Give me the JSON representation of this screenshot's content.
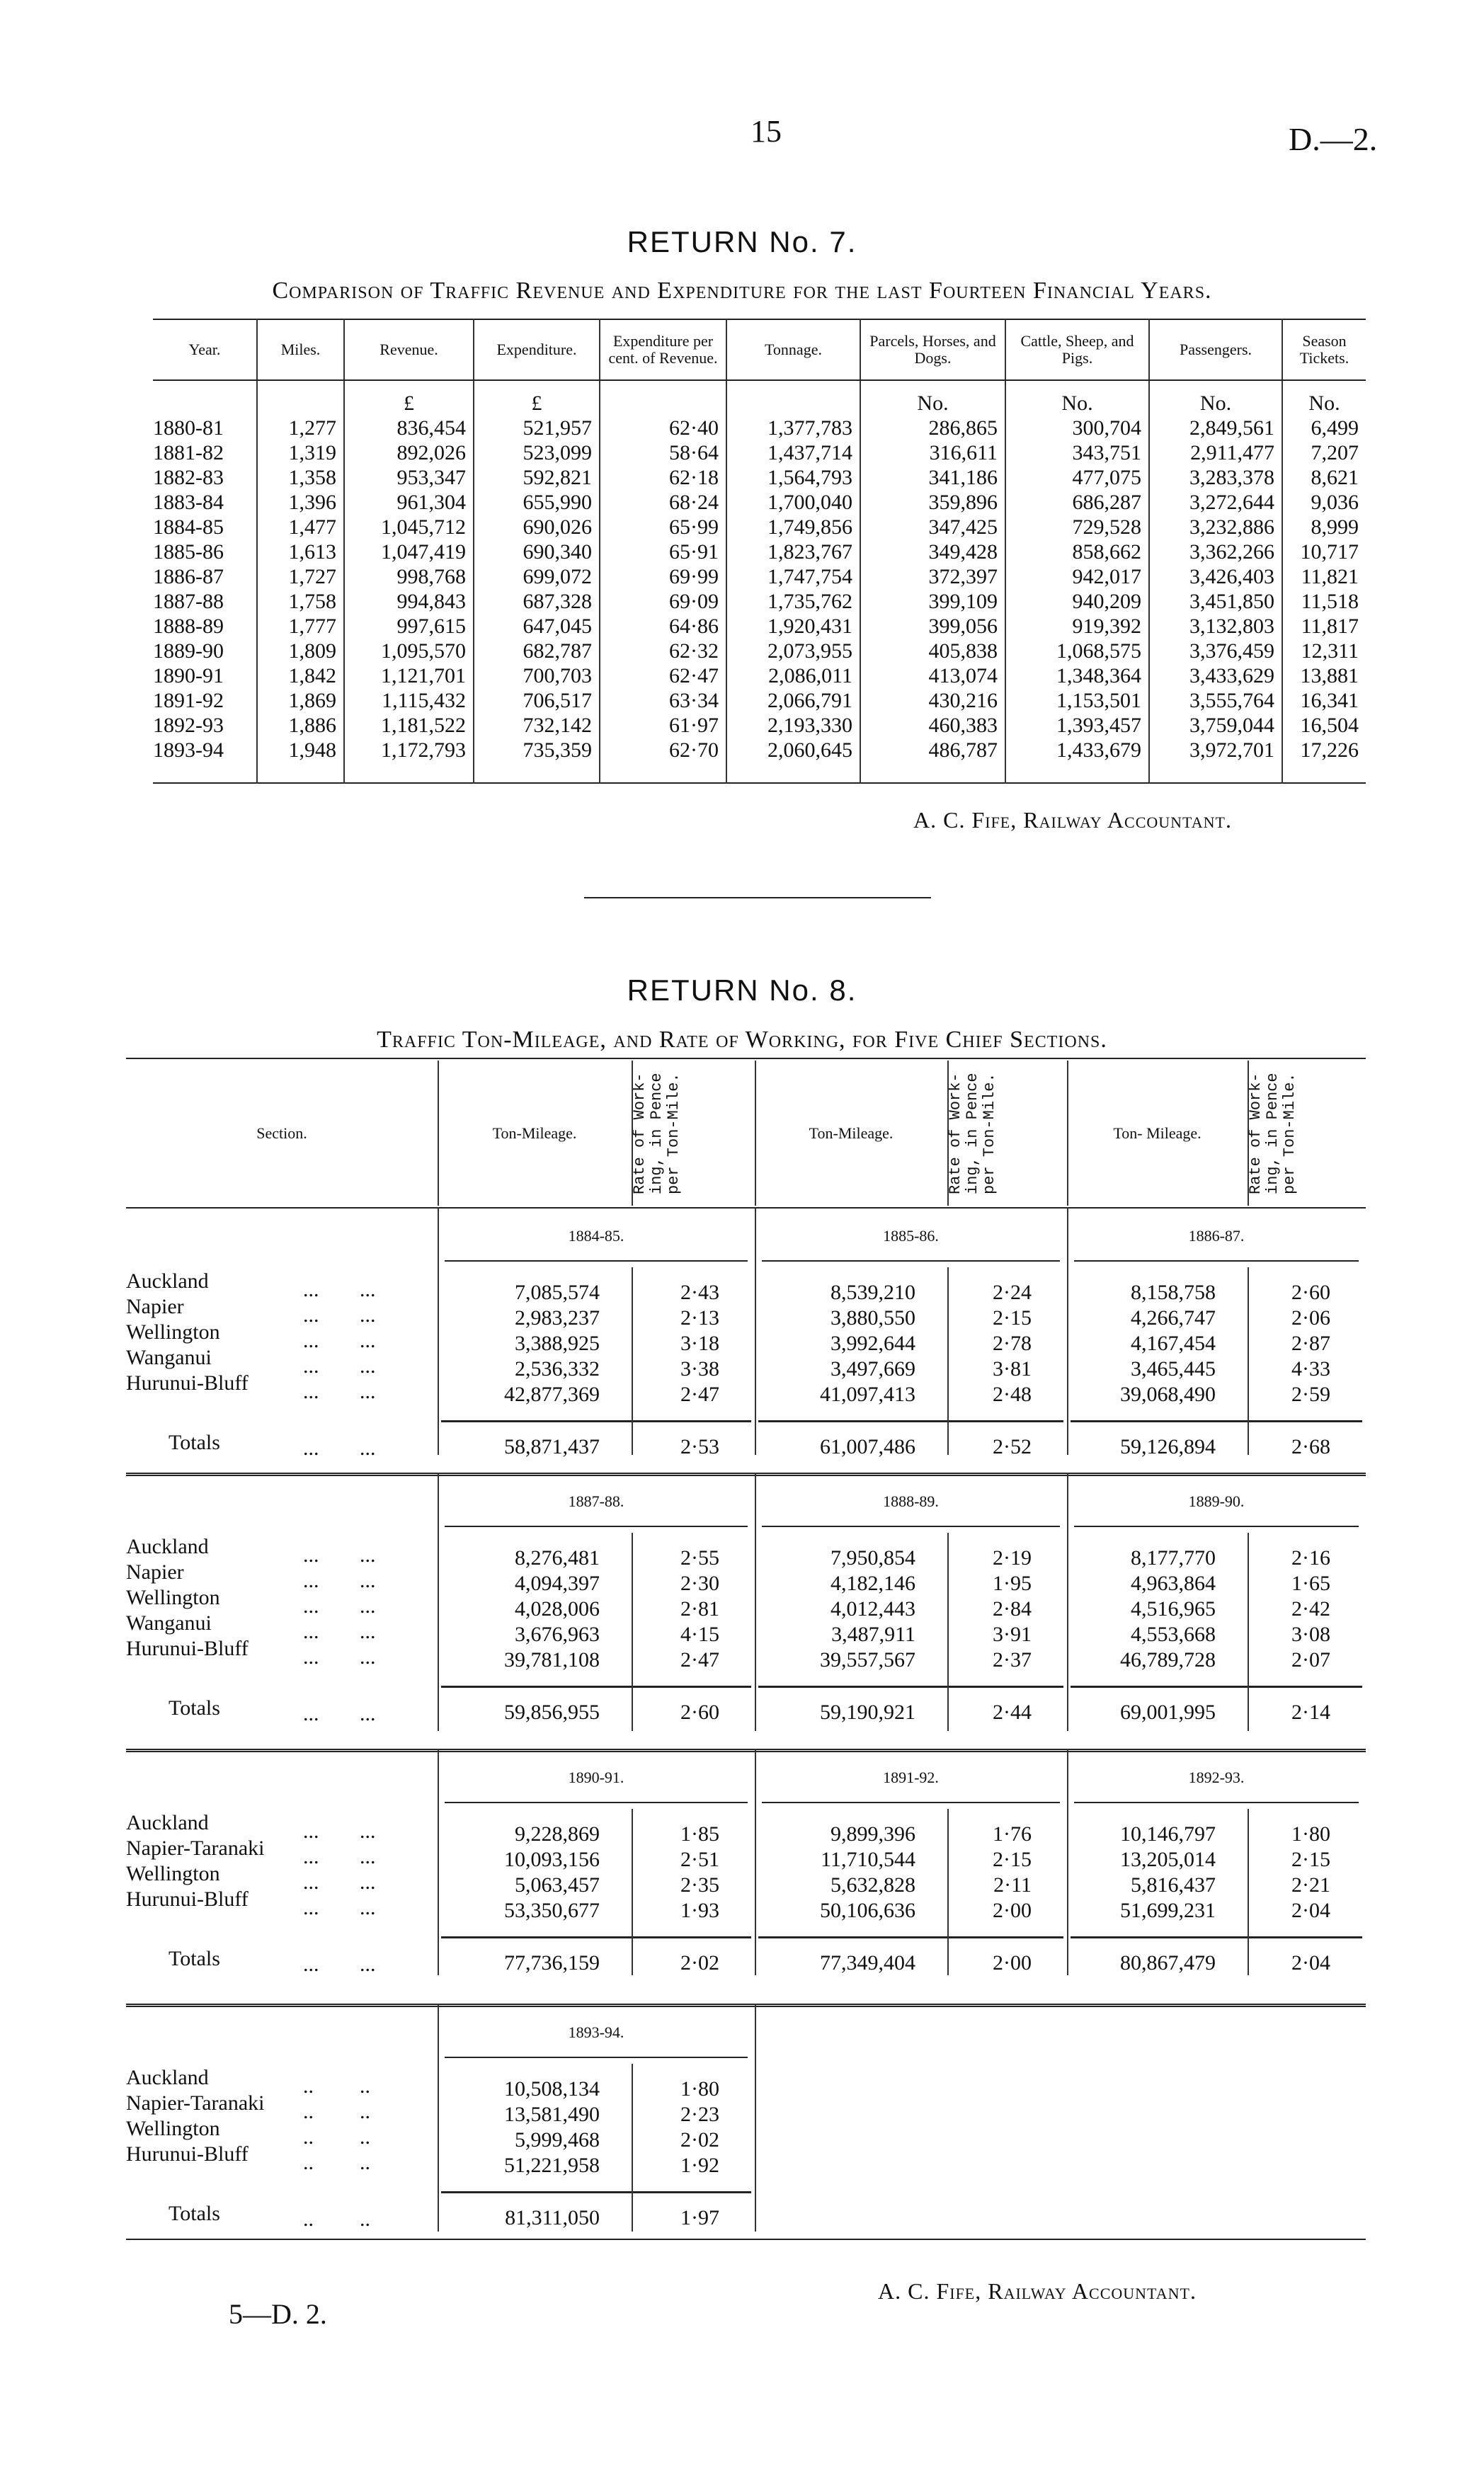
{
  "page": {
    "number": "15",
    "doc_ref": "D.—2.",
    "footer_ref": "5—D. 2."
  },
  "return7": {
    "title": "RETURN No. 7.",
    "subtitle": "Comparison of Traffic Revenue and Expenditure for the last Fourteen Financial Years.",
    "headers": [
      "Year.",
      "Miles.",
      "Revenue.",
      "Expenditure.",
      "Expenditure per cent. of Revenue.",
      "Tonnage.",
      "Parcels, Horses, and Dogs.",
      "Cattle, Sheep, and Pigs.",
      "Passengers.",
      "Season Tickets."
    ],
    "units": [
      "",
      "",
      "£",
      "£",
      "",
      "",
      "No.",
      "No.",
      "No.",
      "No."
    ],
    "rows": [
      [
        "1880-81",
        "1,277",
        "836,454",
        "521,957",
        "62·40",
        "1,377,783",
        "286,865",
        "300,704",
        "2,849,561",
        "6,499"
      ],
      [
        "1881-82",
        "1,319",
        "892,026",
        "523,099",
        "58·64",
        "1,437,714",
        "316,611",
        "343,751",
        "2,911,477",
        "7,207"
      ],
      [
        "1882-83",
        "1,358",
        "953,347",
        "592,821",
        "62·18",
        "1,564,793",
        "341,186",
        "477,075",
        "3,283,378",
        "8,621"
      ],
      [
        "1883-84",
        "1,396",
        "961,304",
        "655,990",
        "68·24",
        "1,700,040",
        "359,896",
        "686,287",
        "3,272,644",
        "9,036"
      ],
      [
        "1884-85",
        "1,477",
        "1,045,712",
        "690,026",
        "65·99",
        "1,749,856",
        "347,425",
        "729,528",
        "3,232,886",
        "8,999"
      ],
      [
        "1885-86",
        "1,613",
        "1,047,419",
        "690,340",
        "65·91",
        "1,823,767",
        "349,428",
        "858,662",
        "3,362,266",
        "10,717"
      ],
      [
        "1886-87",
        "1,727",
        "998,768",
        "699,072",
        "69·99",
        "1,747,754",
        "372,397",
        "942,017",
        "3,426,403",
        "11,821"
      ],
      [
        "1887-88",
        "1,758",
        "994,843",
        "687,328",
        "69·09",
        "1,735,762",
        "399,109",
        "940,209",
        "3,451,850",
        "11,518"
      ],
      [
        "1888-89",
        "1,777",
        "997,615",
        "647,045",
        "64·86",
        "1,920,431",
        "399,056",
        "919,392",
        "3,132,803",
        "11,817"
      ],
      [
        "1889-90",
        "1,809",
        "1,095,570",
        "682,787",
        "62·32",
        "2,073,955",
        "405,838",
        "1,068,575",
        "3,376,459",
        "12,311"
      ],
      [
        "1890-91",
        "1,842",
        "1,121,701",
        "700,703",
        "62·47",
        "2,086,011",
        "413,074",
        "1,348,364",
        "3,433,629",
        "13,881"
      ],
      [
        "1891-92",
        "1,869",
        "1,115,432",
        "706,517",
        "63·34",
        "2,066,791",
        "430,216",
        "1,153,501",
        "3,555,764",
        "16,341"
      ],
      [
        "1892-93",
        "1,886",
        "1,181,522",
        "732,142",
        "61·97",
        "2,193,330",
        "460,383",
        "1,393,457",
        "3,759,044",
        "16,504"
      ],
      [
        "1893-94",
        "1,948",
        "1,172,793",
        "735,359",
        "62·70",
        "2,060,645",
        "486,787",
        "1,433,679",
        "3,972,701",
        "17,226"
      ]
    ],
    "signature": "A. C. Fife, Railway Accountant."
  },
  "return8": {
    "title": "RETURN No. 8.",
    "subtitle": "Traffic Ton-Mileage, and Rate of Working, for Five Chief Sections.",
    "headers": {
      "section": "Section.",
      "ton_mileage": [
        "Ton-Mileage.",
        "Ton-Mileage.",
        "Ton- Mileage."
      ],
      "rate": "Rate of Work- ing, in Pence per Ton-Mile."
    },
    "totals_label": "Totals",
    "blocks": [
      {
        "sections": [
          "Auckland",
          "Napier",
          "Wellington",
          "Wanganui",
          "Hurunui-Bluff"
        ],
        "dots": [
          "...",
          "..."
        ],
        "years": [
          {
            "year": "1884-85.",
            "ton_mileage": [
              "7,085,574",
              "2,983,237",
              "3,388,925",
              "2,536,332",
              "42,877,369"
            ],
            "rate": [
              "2·43",
              "2·13",
              "3·18",
              "3·38",
              "2·47"
            ],
            "total_ton_mileage": "58,871,437",
            "total_rate": "2·53"
          },
          {
            "year": "1885-86.",
            "ton_mileage": [
              "8,539,210",
              "3,880,550",
              "3,992,644",
              "3,497,669",
              "41,097,413"
            ],
            "rate": [
              "2·24",
              "2·15",
              "2·78",
              "3·81",
              "2·48"
            ],
            "total_ton_mileage": "61,007,486",
            "total_rate": "2·52"
          },
          {
            "year": "1886-87.",
            "ton_mileage": [
              "8,158,758",
              "4,266,747",
              "4,167,454",
              "3,465,445",
              "39,068,490"
            ],
            "rate": [
              "2·60",
              "2·06",
              "2·87",
              "4·33",
              "2·59"
            ],
            "total_ton_mileage": "59,126,894",
            "total_rate": "2·68"
          }
        ]
      },
      {
        "sections": [
          "Auckland",
          "Napier",
          "Wellington",
          "Wanganui",
          "Hurunui-Bluff"
        ],
        "dots": [
          "...",
          "..."
        ],
        "years": [
          {
            "year": "1887-88.",
            "ton_mileage": [
              "8,276,481",
              "4,094,397",
              "4,028,006",
              "3,676,963",
              "39,781,108"
            ],
            "rate": [
              "2·55",
              "2·30",
              "2·81",
              "4·15",
              "2·47"
            ],
            "total_ton_mileage": "59,856,955",
            "total_rate": "2·60"
          },
          {
            "year": "1888-89.",
            "ton_mileage": [
              "7,950,854",
              "4,182,146",
              "4,012,443",
              "3,487,911",
              "39,557,567"
            ],
            "rate": [
              "2·19",
              "1·95",
              "2·84",
              "3·91",
              "2·37"
            ],
            "total_ton_mileage": "59,190,921",
            "total_rate": "2·44"
          },
          {
            "year": "1889-90.",
            "ton_mileage": [
              "8,177,770",
              "4,963,864",
              "4,516,965",
              "4,553,668",
              "46,789,728"
            ],
            "rate": [
              "2·16",
              "1·65",
              "2·42",
              "3·08",
              "2·07"
            ],
            "total_ton_mileage": "69,001,995",
            "total_rate": "2·14"
          }
        ]
      },
      {
        "sections": [
          "Auckland",
          "Napier-Taranaki",
          "Wellington",
          "Hurunui-Bluff"
        ],
        "dots": [
          "...",
          "..."
        ],
        "years": [
          {
            "year": "1890-91.",
            "ton_mileage": [
              "9,228,869",
              "10,093,156",
              "5,063,457",
              "53,350,677"
            ],
            "rate": [
              "1·85",
              "2·51",
              "2·35",
              "1·93"
            ],
            "total_ton_mileage": "77,736,159",
            "total_rate": "2·02"
          },
          {
            "year": "1891-92.",
            "ton_mileage": [
              "9,899,396",
              "11,710,544",
              "5,632,828",
              "50,106,636"
            ],
            "rate": [
              "1·76",
              "2·15",
              "2·11",
              "2·00"
            ],
            "total_ton_mileage": "77,349,404",
            "total_rate": "2·00"
          },
          {
            "year": "1892-93.",
            "ton_mileage": [
              "10,146,797",
              "13,205,014",
              "5,816,437",
              "51,699,231"
            ],
            "rate": [
              "1·80",
              "2·15",
              "2·21",
              "2·04"
            ],
            "total_ton_mileage": "80,867,479",
            "total_rate": "2·04"
          }
        ]
      },
      {
        "sections": [
          "Auckland",
          "Napier-Taranaki",
          "Wellington",
          "Hurunui-Bluff"
        ],
        "dots": [
          "..",
          ".."
        ],
        "years": [
          {
            "year": "1893-94.",
            "ton_mileage": [
              "10,508,134",
              "13,581,490",
              "5,999,468",
              "51,221,958"
            ],
            "rate": [
              "1·80",
              "2·23",
              "2·02",
              "1·92"
            ],
            "total_ton_mileage": "81,311,050",
            "total_rate": "1·97"
          }
        ]
      }
    ],
    "signature": "A. C. Fife, Railway Accountant."
  }
}
